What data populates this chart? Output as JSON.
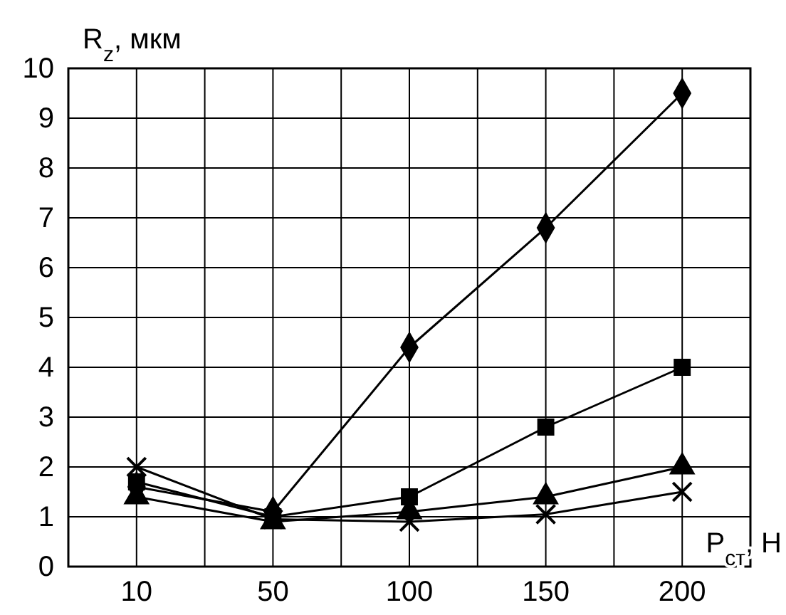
{
  "chart_data": {
    "type": "line",
    "xlabel": "P$_{ст}$, Н",
    "ylabel": "R$_{z}$, мкм",
    "categories": [
      "10",
      "50",
      "100",
      "150",
      "200"
    ],
    "series": [
      {
        "color": "#000000",
        "marker": "diamond",
        "values": [
          1.6,
          1.1,
          4.4,
          6.8,
          9.5
        ]
      },
      {
        "color": "#000000",
        "marker": "square",
        "values": [
          1.7,
          1.0,
          1.4,
          2.8,
          4.0
        ]
      },
      {
        "color": "#000000",
        "marker": "triangle",
        "values": [
          1.4,
          0.9,
          1.1,
          1.4,
          2.0
        ]
      },
      {
        "color": "#000000",
        "marker": "cross",
        "values": [
          2.0,
          0.95,
          0.9,
          1.05,
          1.5
        ]
      }
    ],
    "ylim": [
      0,
      10
    ],
    "yticks": [
      0,
      1,
      2,
      3,
      4,
      5,
      6,
      7,
      8,
      9,
      10
    ],
    "grid": true,
    "line_style": "solid"
  }
}
